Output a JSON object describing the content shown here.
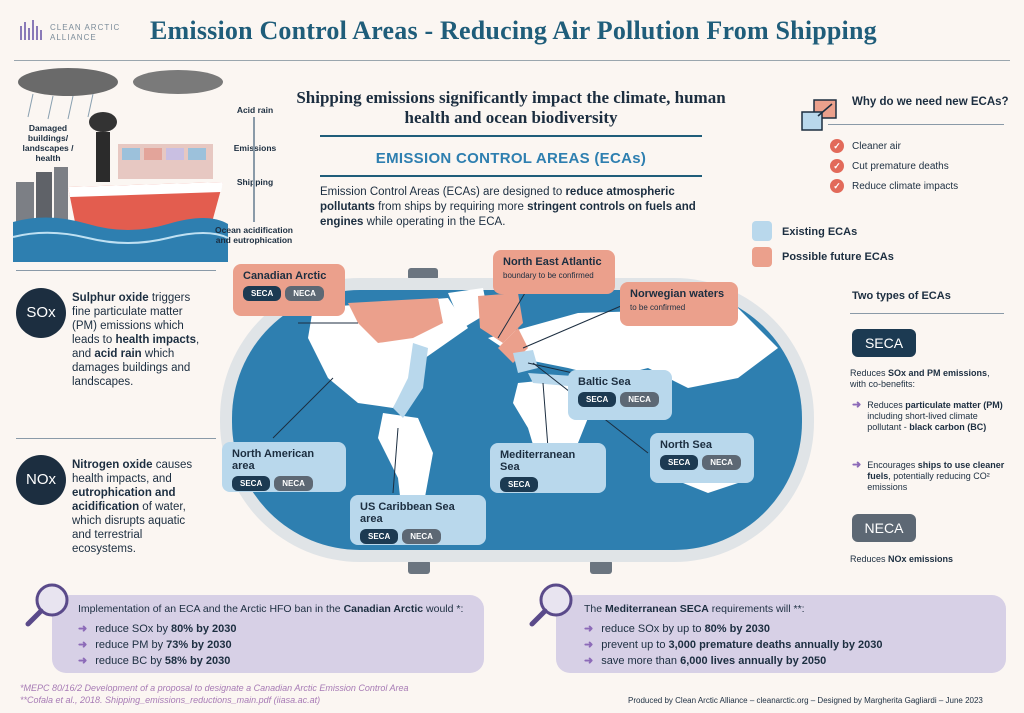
{
  "header": {
    "logo_line1": "CLEAN ARCTIC",
    "logo_line2": "ALLIANCE",
    "title": "Emission Control Areas - Reducing Air Pollution From Shipping"
  },
  "illustration": {
    "damaged": "Damaged buildings/ landscapes / health",
    "acid_rain": "Acid rain",
    "emissions": "Emissions",
    "shipping": "Shipping",
    "ocean": "Ocean acidification and eutrophication"
  },
  "intro": {
    "subtitle": "Shipping emissions significantly impact the climate, human health and ocean biodiversity",
    "section_heading": "EMISSION CONTROL AREAS (ECAs)",
    "p_part1": "Emission Control Areas (ECAs) are designed to ",
    "p_bold1": "reduce atmospheric pollutants",
    "p_part2": " from ships by requiring more ",
    "p_bold2": "stringent controls on fuels and engines",
    "p_part3": " while operating in the ECA."
  },
  "why": {
    "title": "Why do we need new ECAs?",
    "items": [
      "Cleaner air",
      "Cut premature deaths",
      "Reduce climate impacts"
    ]
  },
  "legend": {
    "existing": "Existing ECAs",
    "future": "Possible future ECAs",
    "existing_color": "#b9d8ec",
    "future_color": "#eba08c"
  },
  "gases": {
    "sox": {
      "badge": "SOx",
      "name": "Sulphur oxide",
      "t1": " triggers fine particulate matter (PM) emissions which leads to ",
      "b1": "health impacts",
      "t2": ", and ",
      "b2": "acid rain",
      "t3": " which damages buildings and landscapes."
    },
    "nox": {
      "badge": "NOx",
      "name": "Nitrogen oxide",
      "t1": " causes health impacts, and ",
      "b1": "eutrophication and acidification",
      "t2": " of water, which disrupts aquatic and terrestrial ecosystems."
    }
  },
  "map": {
    "canadian_arctic": "Canadian Arctic",
    "north_east_atlantic": "North East Atlantic",
    "nea_sub": "boundary to be confirmed",
    "norwegian": "Norwegian waters",
    "norwegian_sub": "to be confirmed",
    "baltic": "Baltic Sea",
    "north_sea": "North Sea",
    "mediterranean": "Mediterranean Sea",
    "north_american": "North American area",
    "us_caribbean": "US Caribbean Sea area",
    "seca": "SECA",
    "neca": "NECA"
  },
  "types": {
    "title": "Two types of ECAs",
    "seca": "SECA",
    "seca_desc1": "Reduces ",
    "seca_desc_b": "SOx and PM emissions",
    "seca_desc2": ", with co-benefits:",
    "b1_1": "Reduces ",
    "b1_b": "particulate matter (PM)",
    "b1_2": " including short-lived climate pollutant - ",
    "b1_b2": "black carbon (BC)",
    "b2_1": "Encourages ",
    "b2_b": "ships to use cleaner fuels",
    "b2_2": ", potentially reducing CO² emissions",
    "neca": "NECA",
    "neca_desc1": "Reduces ",
    "neca_desc_b": "NOx emissions"
  },
  "bottom_left": {
    "intro1": "Implementation of an ECA and the Arctic HFO ban in the ",
    "intro_b": "Canadian Arctic",
    "intro2": " would *:",
    "lines": [
      {
        "t": "reduce SOx by ",
        "b": "80% by 2030"
      },
      {
        "t": "reduce PM by ",
        "b": "73% by 2030"
      },
      {
        "t": "reduce BC by ",
        "b": "58% by 2030"
      }
    ]
  },
  "bottom_right": {
    "intro1": "The ",
    "intro_b": "Mediterranean SECA",
    "intro2": " requirements will **:",
    "lines": [
      {
        "t": "reduce SOx by up to ",
        "b": "80% by 2030"
      },
      {
        "t": "prevent up to ",
        "b": "3,000 premature deaths annually by 2030"
      },
      {
        "t": "save more than ",
        "b": "6,000 lives annually by 2050"
      }
    ]
  },
  "footer": {
    "ref1": "*MEPC 80/16/2 Development of a proposal to designate a Canadian Arctic Emission Control Area",
    "ref2": "**Cofala et al., 2018. Shipping_emissions_reductions_main.pdf (iiasa.ac.at)",
    "credit": "Produced by Clean Arctic Alliance – cleanarctic.org – Designed by Margherita Gagliardi – June 2023"
  }
}
